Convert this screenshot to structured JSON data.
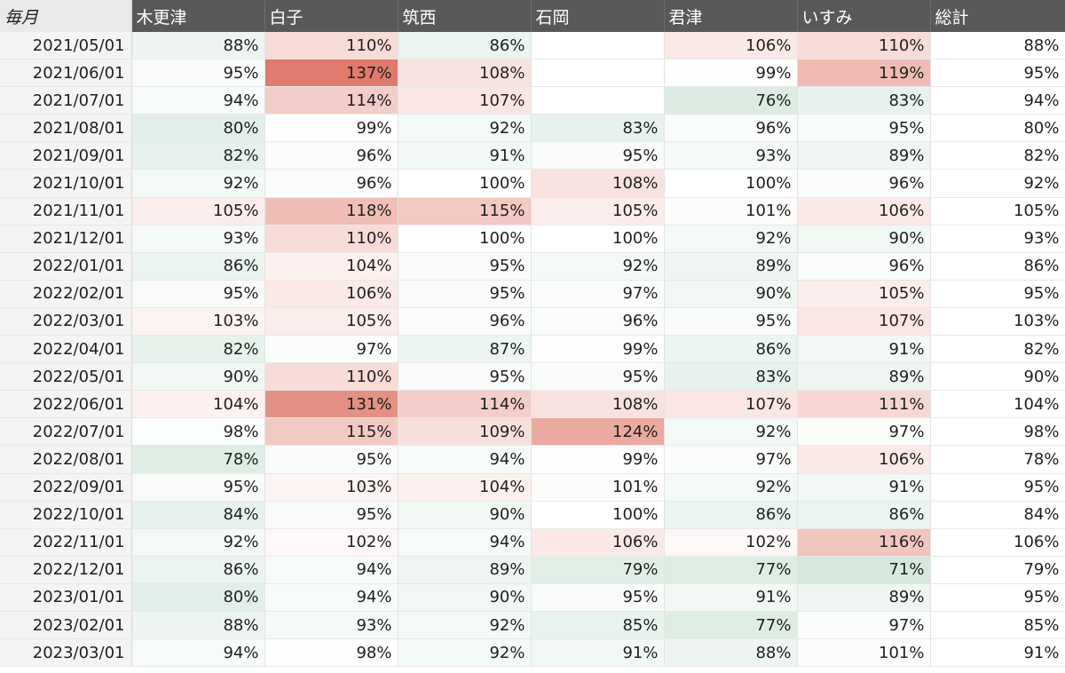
{
  "table": {
    "columns": [
      "毎月",
      "木更津",
      "白子",
      "筑西",
      "石岡",
      "君津",
      "いすみ",
      "総計"
    ],
    "rows": [
      {
        "date": "2021/05/01",
        "values": [
          "88%",
          "110%",
          "86%",
          "",
          "106%",
          "110%",
          "88%"
        ]
      },
      {
        "date": "2021/06/01",
        "values": [
          "95%",
          "137%",
          "108%",
          "",
          "99%",
          "119%",
          "95%"
        ]
      },
      {
        "date": "2021/07/01",
        "values": [
          "94%",
          "114%",
          "107%",
          "",
          "76%",
          "83%",
          "94%"
        ]
      },
      {
        "date": "2021/08/01",
        "values": [
          "80%",
          "99%",
          "92%",
          "83%",
          "96%",
          "95%",
          "80%"
        ]
      },
      {
        "date": "2021/09/01",
        "values": [
          "82%",
          "96%",
          "91%",
          "95%",
          "93%",
          "89%",
          "82%"
        ]
      },
      {
        "date": "2021/10/01",
        "values": [
          "92%",
          "96%",
          "100%",
          "108%",
          "100%",
          "96%",
          "92%"
        ]
      },
      {
        "date": "2021/11/01",
        "values": [
          "105%",
          "118%",
          "115%",
          "105%",
          "101%",
          "106%",
          "105%"
        ]
      },
      {
        "date": "2021/12/01",
        "values": [
          "93%",
          "110%",
          "100%",
          "100%",
          "92%",
          "90%",
          "93%"
        ]
      },
      {
        "date": "2022/01/01",
        "values": [
          "86%",
          "104%",
          "95%",
          "92%",
          "89%",
          "96%",
          "86%"
        ]
      },
      {
        "date": "2022/02/01",
        "values": [
          "95%",
          "106%",
          "95%",
          "97%",
          "90%",
          "105%",
          "95%"
        ]
      },
      {
        "date": "2022/03/01",
        "values": [
          "103%",
          "105%",
          "96%",
          "96%",
          "95%",
          "107%",
          "103%"
        ]
      },
      {
        "date": "2022/04/01",
        "values": [
          "82%",
          "97%",
          "87%",
          "99%",
          "86%",
          "91%",
          "82%"
        ]
      },
      {
        "date": "2022/05/01",
        "values": [
          "90%",
          "110%",
          "95%",
          "95%",
          "83%",
          "89%",
          "90%"
        ]
      },
      {
        "date": "2022/06/01",
        "values": [
          "104%",
          "131%",
          "114%",
          "108%",
          "107%",
          "111%",
          "104%"
        ]
      },
      {
        "date": "2022/07/01",
        "values": [
          "98%",
          "115%",
          "109%",
          "124%",
          "92%",
          "97%",
          "98%"
        ]
      },
      {
        "date": "2022/08/01",
        "values": [
          "78%",
          "95%",
          "94%",
          "99%",
          "97%",
          "106%",
          "78%"
        ]
      },
      {
        "date": "2022/09/01",
        "values": [
          "95%",
          "103%",
          "104%",
          "101%",
          "92%",
          "91%",
          "95%"
        ]
      },
      {
        "date": "2022/10/01",
        "values": [
          "84%",
          "95%",
          "90%",
          "100%",
          "86%",
          "86%",
          "84%"
        ]
      },
      {
        "date": "2022/11/01",
        "values": [
          "92%",
          "102%",
          "94%",
          "106%",
          "102%",
          "116%",
          "106%"
        ]
      },
      {
        "date": "2022/12/01",
        "values": [
          "86%",
          "94%",
          "89%",
          "79%",
          "77%",
          "71%",
          "79%"
        ]
      },
      {
        "date": "2023/01/01",
        "values": [
          "80%",
          "94%",
          "90%",
          "95%",
          "91%",
          "89%",
          "95%"
        ]
      },
      {
        "date": "2023/02/01",
        "values": [
          "88%",
          "93%",
          "92%",
          "85%",
          "77%",
          "97%",
          "85%"
        ]
      },
      {
        "date": "2023/03/01",
        "values": [
          "94%",
          "98%",
          "92%",
          "91%",
          "88%",
          "101%",
          "91%"
        ]
      }
    ]
  },
  "colors": {
    "header_bg": "#595959",
    "header_text": "#ffffff",
    "date_col_bg": "#f4f4f4",
    "scale_high": "#e07a6c",
    "scale_mid": "#ffffff",
    "scale_low": "#d5e8dd"
  }
}
